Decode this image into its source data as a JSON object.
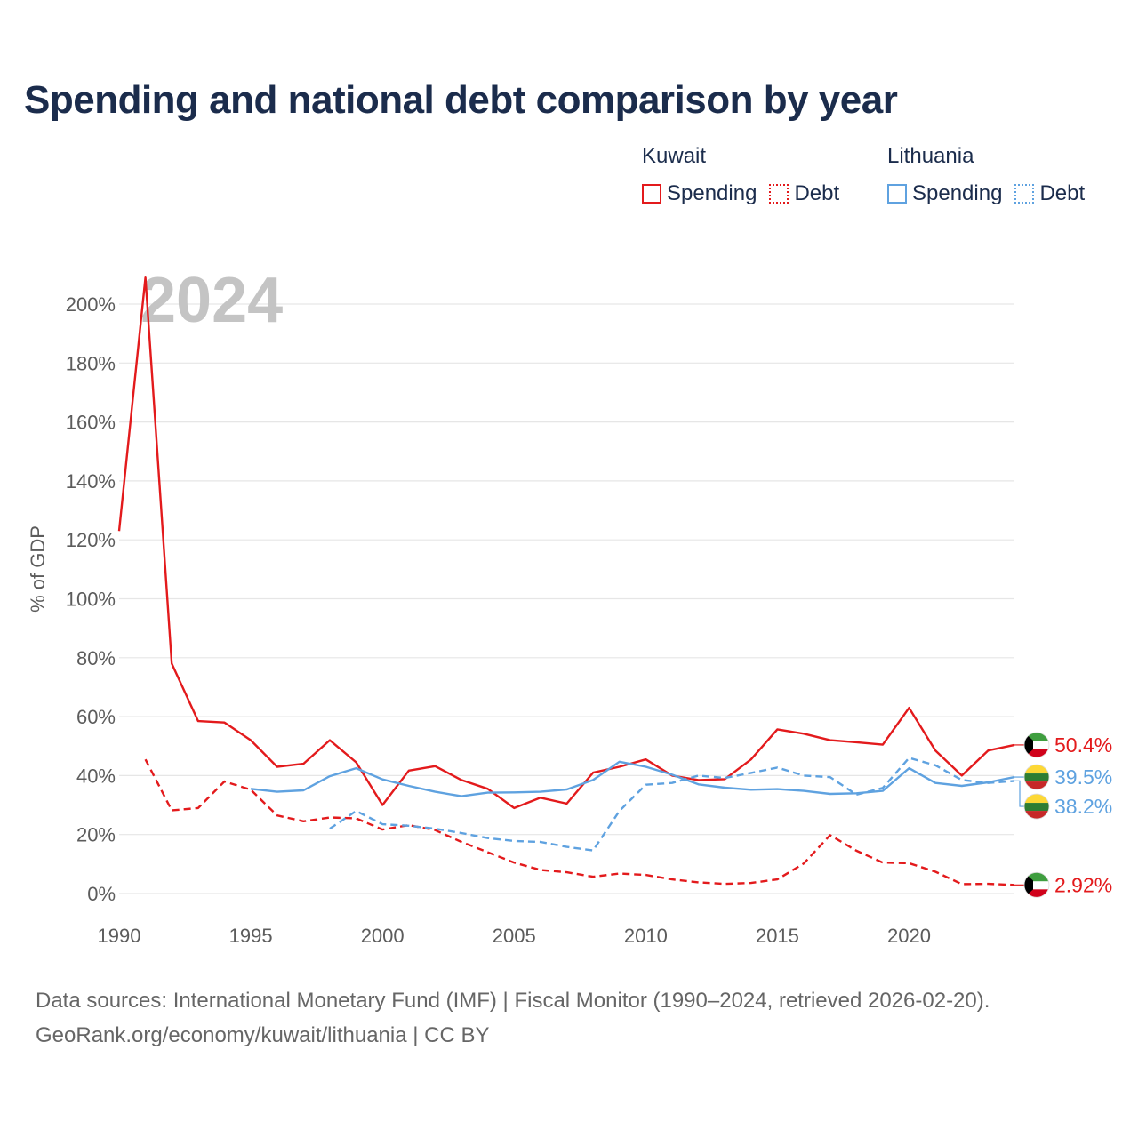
{
  "title": "Spending and national debt comparison by year",
  "legend": {
    "groups": [
      {
        "country": "Kuwait",
        "color": "#e31a1c",
        "items": [
          {
            "label": "Spending",
            "style": "solid"
          },
          {
            "label": "Debt",
            "style": "dotted"
          }
        ]
      },
      {
        "country": "Lithuania",
        "color": "#5fa2e0",
        "items": [
          {
            "label": "Spending",
            "style": "solid"
          },
          {
            "label": "Debt",
            "style": "dotted"
          }
        ]
      }
    ]
  },
  "footer": {
    "line1": "Data sources: International Monetary Fund (IMF) | Fiscal Monitor (1990–2024, retrieved 2026-02-20).",
    "line2": "GeoRank.org/economy/kuwait/lithuania | CC BY"
  },
  "colors": {
    "kuwait": "#e31a1c",
    "lithuania": "#5fa2e0",
    "title": "#1b2c4c",
    "grid": "#e6e6e6",
    "year_watermark": "#c4c4c4"
  },
  "chart_data": {
    "type": "line",
    "year_label": "2024",
    "ylabel": "% of GDP",
    "xlim": [
      1990,
      2024
    ],
    "ylim": [
      0,
      200
    ],
    "x_ticks": [
      1990,
      1995,
      2000,
      2005,
      2010,
      2015,
      2020
    ],
    "x_tick_labels": [
      "1990",
      "1995",
      "2000",
      "2005",
      "2010",
      "2015",
      "2020"
    ],
    "y_ticks": [
      0,
      20,
      40,
      60,
      80,
      100,
      120,
      140,
      160,
      180,
      200
    ],
    "y_tick_labels": [
      "0%",
      "20%",
      "40%",
      "60%",
      "80%",
      "100%",
      "120%",
      "140%",
      "160%",
      "180%",
      "200%"
    ],
    "grid": true,
    "series": [
      {
        "id": "kw-spending",
        "name": "Kuwait Spending",
        "country": "kuwait",
        "dashed": false,
        "end_label": "50.4%",
        "flag": "kuwait",
        "x": [
          1990,
          1991,
          1992,
          1993,
          1994,
          1995,
          1996,
          1997,
          1998,
          1999,
          2000,
          2001,
          2002,
          2003,
          2004,
          2005,
          2006,
          2007,
          2008,
          2009,
          2010,
          2011,
          2012,
          2013,
          2014,
          2015,
          2016,
          2017,
          2018,
          2019,
          2020,
          2021,
          2022,
          2023,
          2024
        ],
        "values": [
          123,
          209,
          78,
          58.5,
          58,
          52,
          43,
          44,
          52,
          44.5,
          30,
          41.7,
          43.2,
          38.5,
          35.5,
          29,
          32.5,
          30.5,
          41,
          43,
          45.5,
          40,
          38.5,
          38.8,
          45.5,
          55.7,
          54.2,
          52,
          51.3,
          50.5,
          63,
          48.5,
          40,
          48.5,
          50.4
        ]
      },
      {
        "id": "kw-debt",
        "name": "Kuwait Debt",
        "country": "kuwait",
        "dashed": true,
        "end_label": "2.92%",
        "flag": "kuwait",
        "x": [
          1991,
          1992,
          1993,
          1994,
          1995,
          1996,
          1997,
          1998,
          1999,
          2000,
          2001,
          2002,
          2003,
          2004,
          2005,
          2006,
          2007,
          2008,
          2009,
          2010,
          2011,
          2012,
          2013,
          2014,
          2015,
          2016,
          2017,
          2018,
          2019,
          2020,
          2021,
          2022,
          2023,
          2024
        ],
        "values": [
          45.5,
          28.2,
          29,
          38,
          35.2,
          26.5,
          24.5,
          25.8,
          25.5,
          21.7,
          23.2,
          21.5,
          17.5,
          14,
          10.5,
          8,
          7.2,
          5.7,
          6.8,
          6.3,
          4.8,
          3.8,
          3.3,
          3.6,
          4.8,
          10.2,
          19.8,
          14.5,
          10.5,
          10.3,
          7.4,
          3.2,
          3.3,
          2.92
        ]
      },
      {
        "id": "lt-spending",
        "name": "Lithuania Spending",
        "country": "lithuania",
        "dashed": false,
        "end_label": "39.5%",
        "flag": "lithuania",
        "x": [
          1995,
          1996,
          1997,
          1998,
          1999,
          2000,
          2001,
          2002,
          2003,
          2004,
          2005,
          2006,
          2007,
          2008,
          2009,
          2010,
          2011,
          2012,
          2013,
          2014,
          2015,
          2016,
          2017,
          2018,
          2019,
          2020,
          2021,
          2022,
          2023,
          2024
        ],
        "values": [
          35.5,
          34.5,
          35,
          39.8,
          42.5,
          38.7,
          36.5,
          34.5,
          33,
          34.2,
          34.3,
          34.5,
          35.3,
          38.5,
          44.7,
          43,
          40.3,
          37,
          35.9,
          35.2,
          35.4,
          34.8,
          33.8,
          34,
          34.8,
          42.5,
          37.5,
          36.5,
          37.7,
          39.5
        ]
      },
      {
        "id": "lt-debt",
        "name": "Lithuania Debt",
        "country": "lithuania",
        "dashed": true,
        "end_label": "38.2%",
        "flag": "lithuania",
        "x": [
          1998,
          1999,
          2000,
          2001,
          2002,
          2003,
          2004,
          2005,
          2006,
          2007,
          2008,
          2009,
          2010,
          2011,
          2012,
          2013,
          2014,
          2015,
          2016,
          2017,
          2018,
          2019,
          2020,
          2021,
          2022,
          2023,
          2024
        ],
        "values": [
          22,
          28,
          23.5,
          23,
          22,
          20.5,
          18.8,
          17.8,
          17.5,
          15.8,
          14.6,
          28,
          36.9,
          37.5,
          40,
          39.2,
          40.9,
          42.7,
          40,
          39.5,
          33.5,
          35.8,
          46,
          43.5,
          38.5,
          37.5,
          38.2
        ]
      }
    ]
  }
}
